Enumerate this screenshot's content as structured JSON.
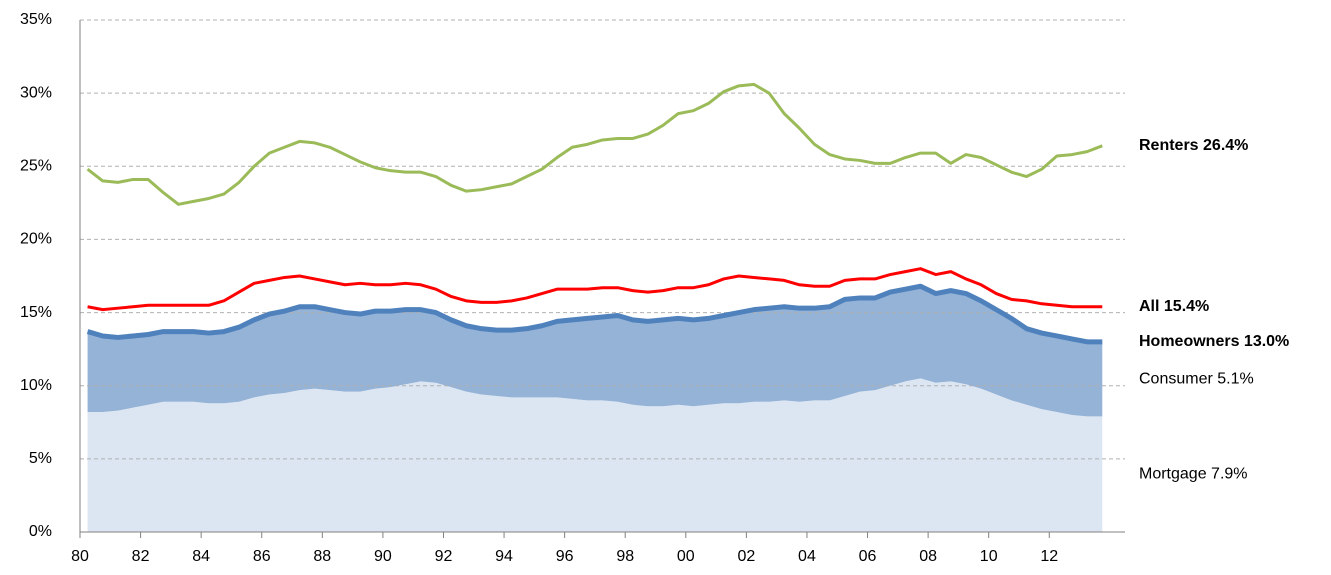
{
  "chart_data": {
    "type": "line",
    "stacked": true,
    "grid": true,
    "xlim": [
      1980,
      2014.5
    ],
    "xticks": [
      {
        "value": 1980,
        "label": "80"
      },
      {
        "value": 1982,
        "label": "82"
      },
      {
        "value": 1984,
        "label": "84"
      },
      {
        "value": 1986,
        "label": "86"
      },
      {
        "value": 1988,
        "label": "88"
      },
      {
        "value": 1990,
        "label": "90"
      },
      {
        "value": 1992,
        "label": "92"
      },
      {
        "value": 1994,
        "label": "94"
      },
      {
        "value": 1996,
        "label": "96"
      },
      {
        "value": 1998,
        "label": "98"
      },
      {
        "value": 2000,
        "label": "00"
      },
      {
        "value": 2002,
        "label": "02"
      },
      {
        "value": 2004,
        "label": "04"
      },
      {
        "value": 2006,
        "label": "06"
      },
      {
        "value": 2008,
        "label": "08"
      },
      {
        "value": 2010,
        "label": "10"
      },
      {
        "value": 2012,
        "label": "12"
      }
    ],
    "ylim": [
      0,
      35
    ],
    "yticks": [
      {
        "value": 0,
        "label": "0%"
      },
      {
        "value": 5,
        "label": "5%"
      },
      {
        "value": 10,
        "label": "10%"
      },
      {
        "value": 15,
        "label": "15%"
      },
      {
        "value": 20,
        "label": "20%"
      },
      {
        "value": 25,
        "label": "25%"
      },
      {
        "value": 30,
        "label": "30%"
      },
      {
        "value": 35,
        "label": "35%"
      }
    ],
    "x": [
      1980.25,
      1980.75,
      1981.25,
      1981.75,
      1982.25,
      1982.75,
      1983.25,
      1983.75,
      1984.25,
      1984.75,
      1985.25,
      1985.75,
      1986.25,
      1986.75,
      1987.25,
      1987.75,
      1988.25,
      1988.75,
      1989.25,
      1989.75,
      1990.25,
      1990.75,
      1991.25,
      1991.75,
      1992.25,
      1992.75,
      1993.25,
      1993.75,
      1994.25,
      1994.75,
      1995.25,
      1995.75,
      1996.25,
      1996.75,
      1997.25,
      1997.75,
      1998.25,
      1998.75,
      1999.25,
      1999.75,
      2000.25,
      2000.75,
      2001.25,
      2001.75,
      2002.25,
      2002.75,
      2003.25,
      2003.75,
      2004.25,
      2004.75,
      2005.25,
      2005.75,
      2006.25,
      2006.75,
      2007.25,
      2007.75,
      2008.25,
      2008.75,
      2009.25,
      2009.75,
      2010.25,
      2010.75,
      2011.25,
      2011.75,
      2012.25,
      2012.75,
      2013.25,
      2013.75
    ],
    "series": [
      {
        "name": "Renters 26.4%",
        "kind": "line",
        "color": "#9bbb59",
        "values": [
          24.8,
          24.0,
          23.9,
          24.1,
          24.1,
          23.2,
          22.4,
          22.6,
          22.8,
          23.1,
          23.9,
          25.0,
          25.9,
          26.3,
          26.7,
          26.6,
          26.3,
          25.8,
          25.3,
          24.9,
          24.7,
          24.6,
          24.6,
          24.3,
          23.7,
          23.3,
          23.4,
          23.6,
          23.8,
          24.3,
          24.8,
          25.6,
          26.3,
          26.5,
          26.8,
          26.9,
          26.9,
          27.2,
          27.8,
          28.6,
          28.8,
          29.3,
          30.1,
          30.5,
          30.6,
          30.0,
          28.6,
          27.6,
          26.5,
          25.8,
          25.5,
          25.4,
          25.2,
          25.2,
          25.6,
          25.9,
          25.9,
          25.2,
          25.8,
          25.6,
          25.1,
          24.6,
          24.3,
          24.8,
          25.7,
          25.8,
          26.0,
          26.4
        ]
      },
      {
        "name": "All 15.4%",
        "kind": "line",
        "color": "#ff0000",
        "values": [
          15.4,
          15.2,
          15.3,
          15.4,
          15.5,
          15.5,
          15.5,
          15.5,
          15.5,
          15.8,
          16.4,
          17.0,
          17.2,
          17.4,
          17.5,
          17.3,
          17.1,
          16.9,
          17.0,
          16.9,
          16.9,
          17.0,
          16.9,
          16.6,
          16.1,
          15.8,
          15.7,
          15.7,
          15.8,
          16.0,
          16.3,
          16.6,
          16.6,
          16.6,
          16.7,
          16.7,
          16.5,
          16.4,
          16.5,
          16.7,
          16.7,
          16.9,
          17.3,
          17.5,
          17.4,
          17.3,
          17.2,
          16.9,
          16.8,
          16.8,
          17.2,
          17.3,
          17.3,
          17.6,
          17.8,
          18.0,
          17.6,
          17.8,
          17.3,
          16.9,
          16.3,
          15.9,
          15.8,
          15.6,
          15.5,
          15.4,
          15.4,
          15.4
        ]
      },
      {
        "name": "Homeowners 13.0%",
        "kind": "line",
        "color": "#4f81bd",
        "values": [
          13.7,
          13.4,
          13.3,
          13.4,
          13.5,
          13.7,
          13.7,
          13.7,
          13.6,
          13.7,
          14.0,
          14.5,
          14.9,
          15.1,
          15.4,
          15.4,
          15.2,
          15.0,
          14.9,
          15.1,
          15.1,
          15.2,
          15.2,
          15.0,
          14.5,
          14.1,
          13.9,
          13.8,
          13.8,
          13.9,
          14.1,
          14.4,
          14.5,
          14.6,
          14.7,
          14.8,
          14.5,
          14.4,
          14.5,
          14.6,
          14.5,
          14.6,
          14.8,
          15.0,
          15.2,
          15.3,
          15.4,
          15.3,
          15.3,
          15.4,
          15.9,
          16.0,
          16.0,
          16.4,
          16.6,
          16.8,
          16.3,
          16.5,
          16.3,
          15.8,
          15.2,
          14.6,
          13.9,
          13.6,
          13.4,
          13.2,
          13.0,
          13.0
        ]
      },
      {
        "name": "Consumer 5.1%",
        "kind": "area",
        "color": "#95b3d7",
        "values": [
          5.5,
          5.2,
          5.0,
          4.9,
          4.8,
          4.8,
          4.8,
          4.8,
          4.8,
          4.9,
          5.1,
          5.3,
          5.5,
          5.6,
          5.7,
          5.6,
          5.5,
          5.4,
          5.3,
          5.3,
          5.2,
          5.1,
          4.9,
          4.8,
          4.6,
          4.5,
          4.5,
          4.5,
          4.6,
          4.7,
          4.9,
          5.2,
          5.4,
          5.6,
          5.7,
          5.9,
          5.8,
          5.8,
          5.9,
          5.9,
          5.9,
          5.9,
          6.0,
          6.2,
          6.3,
          6.4,
          6.4,
          6.4,
          6.3,
          6.4,
          6.6,
          6.4,
          6.3,
          6.4,
          6.3,
          6.3,
          6.1,
          6.2,
          6.2,
          6.0,
          5.8,
          5.6,
          5.2,
          5.2,
          5.2,
          5.2,
          5.1,
          5.1
        ]
      },
      {
        "name": "Mortgage 7.9%",
        "kind": "area",
        "color": "#dce6f2",
        "values": [
          8.2,
          8.2,
          8.3,
          8.5,
          8.7,
          8.9,
          8.9,
          8.9,
          8.8,
          8.8,
          8.9,
          9.2,
          9.4,
          9.5,
          9.7,
          9.8,
          9.7,
          9.6,
          9.6,
          9.8,
          9.9,
          10.1,
          10.3,
          10.2,
          9.9,
          9.6,
          9.4,
          9.3,
          9.2,
          9.2,
          9.2,
          9.2,
          9.1,
          9.0,
          9.0,
          8.9,
          8.7,
          8.6,
          8.6,
          8.7,
          8.6,
          8.7,
          8.8,
          8.8,
          8.9,
          8.9,
          9.0,
          8.9,
          9.0,
          9.0,
          9.3,
          9.6,
          9.7,
          10.0,
          10.3,
          10.5,
          10.2,
          10.3,
          10.1,
          9.8,
          9.4,
          9.0,
          8.7,
          8.4,
          8.2,
          8.0,
          7.9,
          7.9
        ]
      }
    ]
  }
}
